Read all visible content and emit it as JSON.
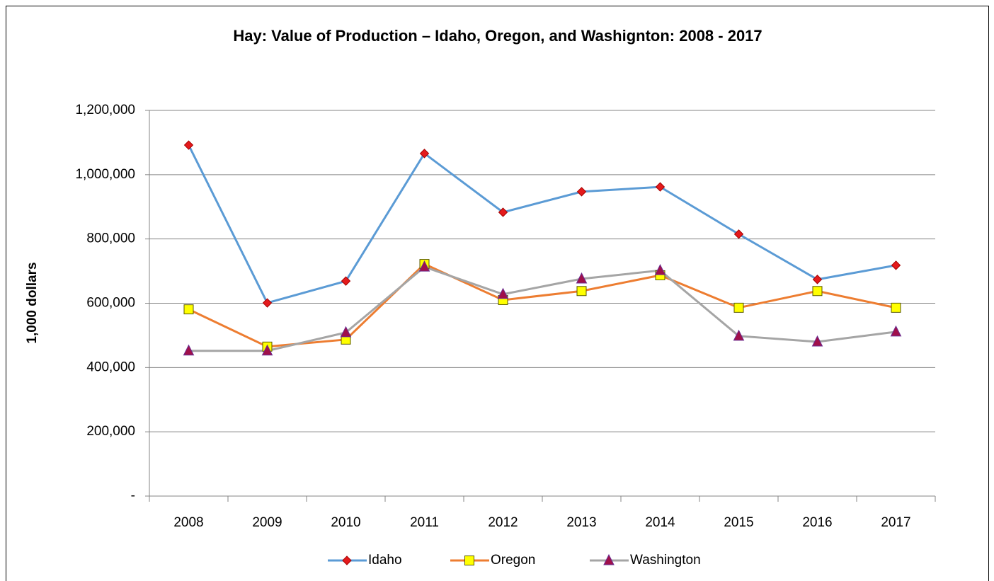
{
  "chart_data": {
    "type": "line",
    "title": "Hay: Value of Production – Idaho, Oregon, and Washignton: 2008 - 2017",
    "y_label": "1,000 dollars",
    "categories": [
      "2008",
      "2009",
      "2010",
      "2011",
      "2012",
      "2013",
      "2014",
      "2015",
      "2016",
      "2017"
    ],
    "series": [
      {
        "name": "Idaho",
        "color": "#5b9bd5",
        "marker": "diamond",
        "marker_color": "#e41a1c",
        "marker_stroke": "#a50000",
        "values": [
          1092000,
          601000,
          669000,
          1066000,
          883000,
          947000,
          962000,
          815000,
          674000,
          718000
        ]
      },
      {
        "name": "Oregon",
        "color": "#ed7d31",
        "marker": "square",
        "marker_color": "#ffff00",
        "marker_stroke": "#5a5a00",
        "values": [
          581000,
          465000,
          487000,
          722000,
          610000,
          638000,
          687000,
          586000,
          638000,
          586000
        ]
      },
      {
        "name": "Washington",
        "color": "#a5a5a5",
        "marker": "triangle",
        "marker_color": "#a0104a",
        "marker_stroke": "#6b2c91",
        "values": [
          452000,
          452000,
          509000,
          713000,
          628000,
          676000,
          702000,
          498000,
          480000,
          511000
        ]
      }
    ],
    "ylim": [
      0,
      1200000
    ],
    "yticks": [
      {
        "value": 0,
        "label": "-"
      },
      {
        "value": 200000,
        "label": "200,000"
      },
      {
        "value": 400000,
        "label": "400,000"
      },
      {
        "value": 600000,
        "label": "600,000"
      },
      {
        "value": 800000,
        "label": "800,000"
      },
      {
        "value": 1000000,
        "label": "1,000,000"
      },
      {
        "value": 1200000,
        "label": "1,200,000"
      }
    ],
    "grid": true,
    "legend": "bottom"
  }
}
